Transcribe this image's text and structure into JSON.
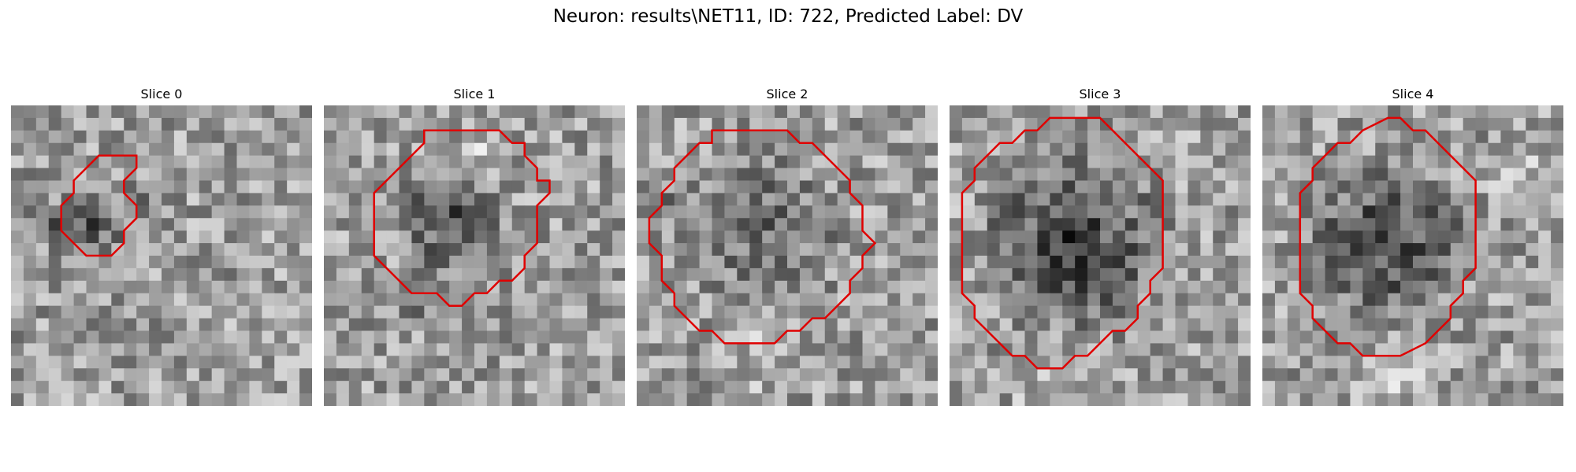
{
  "figure": {
    "title": "Neuron: results\\NET11, ID: 722, Predicted Label: DV",
    "contour_color": "#e00000",
    "colormap": "gray",
    "panels": [
      {
        "title": "Slice 0",
        "seed": 11,
        "contour": [
          [
            8,
            4
          ],
          [
            10,
            4
          ],
          [
            10,
            5
          ],
          [
            9,
            6
          ],
          [
            9,
            7
          ],
          [
            10,
            8
          ],
          [
            10,
            9
          ],
          [
            9,
            10
          ],
          [
            9,
            11
          ],
          [
            8,
            12
          ],
          [
            6,
            12
          ],
          [
            5,
            11
          ],
          [
            4,
            10
          ],
          [
            4,
            8
          ],
          [
            5,
            7
          ],
          [
            5,
            6
          ],
          [
            6,
            5
          ],
          [
            7,
            4
          ]
        ],
        "blobs": [
          [
            6,
            10,
            3.5,
            0.8
          ],
          [
            3,
            9,
            2.5,
            0.45
          ],
          [
            10,
            8,
            2.5,
            0.35
          ]
        ]
      },
      {
        "title": "Slice 1",
        "seed": 23,
        "contour": [
          [
            8,
            2
          ],
          [
            14,
            2
          ],
          [
            15,
            3
          ],
          [
            16,
            3
          ],
          [
            16,
            4
          ],
          [
            17,
            5
          ],
          [
            17,
            6
          ],
          [
            18,
            6
          ],
          [
            18,
            7
          ],
          [
            17,
            8
          ],
          [
            17,
            11
          ],
          [
            16,
            12
          ],
          [
            16,
            13
          ],
          [
            15,
            14
          ],
          [
            14,
            14
          ],
          [
            13,
            15
          ],
          [
            12,
            15
          ],
          [
            11,
            16
          ],
          [
            10,
            16
          ],
          [
            9,
            15
          ],
          [
            7,
            15
          ],
          [
            6,
            14
          ],
          [
            5,
            13
          ],
          [
            4,
            12
          ],
          [
            4,
            9
          ],
          [
            4,
            7
          ],
          [
            5,
            6
          ],
          [
            6,
            5
          ],
          [
            7,
            4
          ],
          [
            8,
            3
          ]
        ],
        "blobs": [
          [
            10,
            9,
            5,
            0.75
          ],
          [
            8,
            15,
            4,
            0.35
          ],
          [
            13,
            3,
            3,
            -0.3
          ]
        ]
      },
      {
        "title": "Slice 2",
        "seed": 37,
        "contour": [
          [
            6,
            2
          ],
          [
            9,
            2
          ],
          [
            10,
            2
          ],
          [
            12,
            2
          ],
          [
            13,
            3
          ],
          [
            14,
            3
          ],
          [
            15,
            4
          ],
          [
            16,
            5
          ],
          [
            17,
            6
          ],
          [
            17,
            7
          ],
          [
            18,
            8
          ],
          [
            18,
            10
          ],
          [
            19,
            11
          ],
          [
            18,
            12
          ],
          [
            18,
            13
          ],
          [
            17,
            14
          ],
          [
            17,
            15
          ],
          [
            16,
            16
          ],
          [
            15,
            17
          ],
          [
            14,
            17
          ],
          [
            13,
            18
          ],
          [
            12,
            18
          ],
          [
            11,
            19
          ],
          [
            9,
            19
          ],
          [
            7,
            19
          ],
          [
            6,
            18
          ],
          [
            5,
            18
          ],
          [
            4,
            17
          ],
          [
            3,
            16
          ],
          [
            3,
            15
          ],
          [
            2,
            14
          ],
          [
            2,
            13
          ],
          [
            2,
            12
          ],
          [
            1,
            11
          ],
          [
            1,
            9
          ],
          [
            2,
            8
          ],
          [
            2,
            7
          ],
          [
            3,
            6
          ],
          [
            3,
            5
          ],
          [
            4,
            4
          ],
          [
            5,
            3
          ],
          [
            6,
            3
          ]
        ],
        "blobs": [
          [
            10,
            10,
            8,
            0.5
          ],
          [
            1,
            8,
            3,
            0.45
          ],
          [
            10,
            20,
            4,
            -0.3
          ]
        ]
      },
      {
        "title": "Slice 3",
        "seed": 53,
        "contour": [
          [
            7,
            2
          ],
          [
            8,
            1
          ],
          [
            10,
            1
          ],
          [
            12,
            1
          ],
          [
            13,
            2
          ],
          [
            14,
            3
          ],
          [
            15,
            4
          ],
          [
            16,
            5
          ],
          [
            17,
            6
          ],
          [
            17,
            8
          ],
          [
            17,
            10
          ],
          [
            17,
            12
          ],
          [
            17,
            13
          ],
          [
            16,
            14
          ],
          [
            16,
            15
          ],
          [
            15,
            16
          ],
          [
            15,
            17
          ],
          [
            14,
            18
          ],
          [
            13,
            18
          ],
          [
            12,
            19
          ],
          [
            11,
            20
          ],
          [
            10,
            20
          ],
          [
            9,
            21
          ],
          [
            7,
            21
          ],
          [
            6,
            20
          ],
          [
            5,
            20
          ],
          [
            4,
            19
          ],
          [
            3,
            18
          ],
          [
            2,
            17
          ],
          [
            2,
            16
          ],
          [
            1,
            15
          ],
          [
            1,
            13
          ],
          [
            1,
            10
          ],
          [
            1,
            7
          ],
          [
            2,
            6
          ],
          [
            2,
            5
          ],
          [
            3,
            4
          ],
          [
            4,
            3
          ],
          [
            5,
            3
          ],
          [
            6,
            2
          ]
        ],
        "blobs": [
          [
            10,
            11,
            9,
            0.9
          ],
          [
            17,
            3,
            3,
            -0.4
          ],
          [
            9,
            22,
            5,
            -0.3
          ]
        ]
      },
      {
        "title": "Slice 4",
        "seed": 71,
        "contour": [
          [
            8,
            2
          ],
          [
            10,
            1
          ],
          [
            11,
            1
          ],
          [
            12,
            2
          ],
          [
            13,
            2
          ],
          [
            14,
            3
          ],
          [
            15,
            4
          ],
          [
            16,
            5
          ],
          [
            17,
            6
          ],
          [
            17,
            8
          ],
          [
            17,
            10
          ],
          [
            17,
            12
          ],
          [
            17,
            13
          ],
          [
            16,
            14
          ],
          [
            16,
            15
          ],
          [
            15,
            16
          ],
          [
            15,
            17
          ],
          [
            14,
            18
          ],
          [
            13,
            19
          ],
          [
            11,
            20
          ],
          [
            9,
            20
          ],
          [
            8,
            20
          ],
          [
            7,
            19
          ],
          [
            6,
            19
          ],
          [
            5,
            18
          ],
          [
            4,
            17
          ],
          [
            4,
            16
          ],
          [
            3,
            15
          ],
          [
            3,
            14
          ],
          [
            3,
            12
          ],
          [
            3,
            10
          ],
          [
            3,
            7
          ],
          [
            4,
            6
          ],
          [
            4,
            5
          ],
          [
            5,
            4
          ],
          [
            6,
            3
          ],
          [
            7,
            3
          ]
        ],
        "blobs": [
          [
            10,
            11,
            8,
            0.85
          ],
          [
            20,
            5,
            3,
            -0.4
          ],
          [
            10,
            22,
            4,
            -0.35
          ]
        ]
      }
    ]
  }
}
